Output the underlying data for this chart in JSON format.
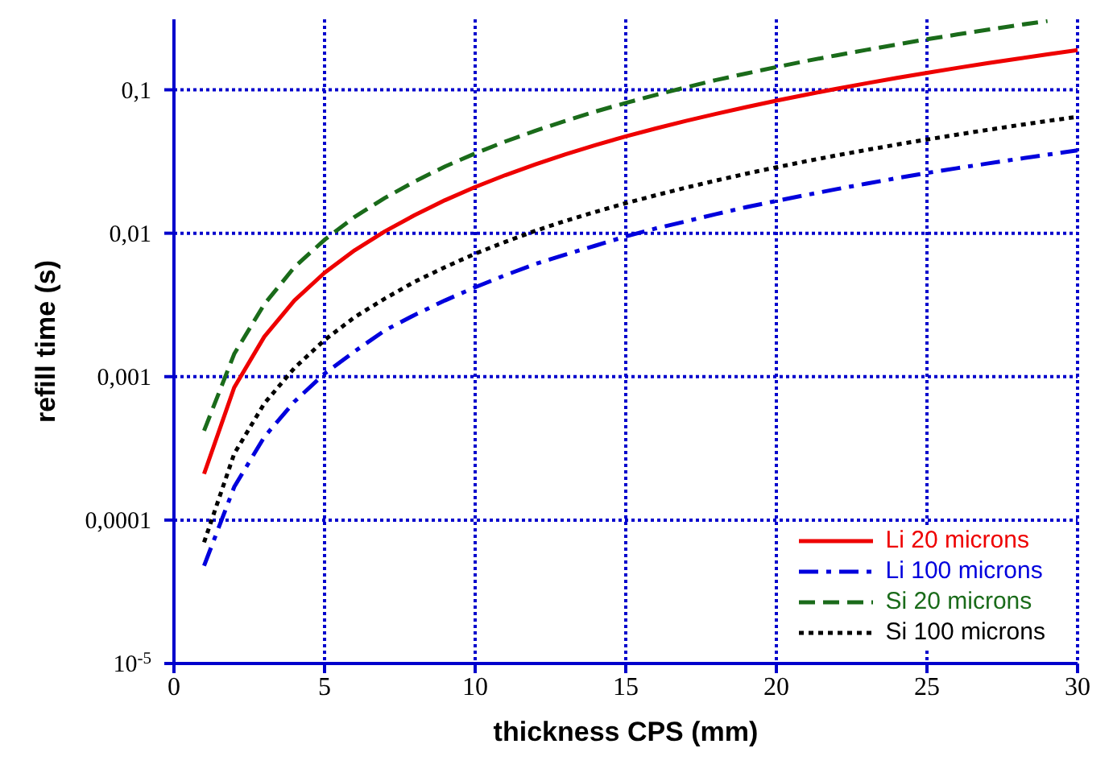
{
  "chart_data": {
    "type": "line",
    "xlabel": "thickness CPS (mm)",
    "ylabel": "refill time (s)",
    "x": [
      1,
      2,
      3,
      4,
      5,
      6,
      7,
      8,
      9,
      10,
      11,
      12,
      13,
      14,
      15,
      16,
      17,
      18,
      19,
      20,
      21,
      22,
      23,
      24,
      25,
      26,
      27,
      28,
      29,
      30
    ],
    "series": [
      {
        "name": "Li 20 microns",
        "color": "#ee0000",
        "line_style": "solid",
        "values": [
          0.00021,
          0.00084,
          0.0019,
          0.0034,
          0.0053,
          0.0076,
          0.0103,
          0.0134,
          0.017,
          0.021,
          0.0254,
          0.0302,
          0.0355,
          0.0412,
          0.0473,
          0.0538,
          0.0607,
          0.068,
          0.0758,
          0.084,
          0.0926,
          0.1016,
          0.1111,
          0.121,
          0.1313,
          0.142,
          0.1531,
          0.1646,
          0.1766,
          0.189
        ]
      },
      {
        "name": "Li 100 microns",
        "color": "#0000dd",
        "line_style": "dashdot",
        "values": [
          4.8e-05,
          0.00017,
          0.00038,
          0.00067,
          0.00105,
          0.0015,
          0.0021,
          0.0027,
          0.0034,
          0.0042,
          0.0051,
          0.0061,
          0.0071,
          0.0082,
          0.0095,
          0.0108,
          0.0121,
          0.0136,
          0.0152,
          0.0168,
          0.0185,
          0.0203,
          0.0222,
          0.0242,
          0.0263,
          0.0284,
          0.0306,
          0.0329,
          0.0353,
          0.0378
        ]
      },
      {
        "name": "Si 20 microns",
        "color": "#1a6b1a",
        "line_style": "dashed",
        "values": [
          0.00042,
          0.00144,
          0.0032,
          0.0058,
          0.009,
          0.013,
          0.0176,
          0.023,
          0.0292,
          0.036,
          0.0436,
          0.0518,
          0.0608,
          0.0706,
          0.081,
          0.0922,
          0.104,
          0.117,
          0.13,
          0.144,
          0.159,
          0.174,
          0.19,
          0.207,
          0.225,
          0.243,
          0.262,
          0.282,
          0.302,
          null
        ]
      },
      {
        "name": "Si 100 microns",
        "color": "#000000",
        "line_style": "dotted",
        "values": [
          7e-05,
          0.00029,
          0.00065,
          0.00115,
          0.0018,
          0.0026,
          0.0035,
          0.0046,
          0.0058,
          0.0072,
          0.0087,
          0.0104,
          0.0122,
          0.0141,
          0.0162,
          0.0184,
          0.0208,
          0.0233,
          0.026,
          0.0288,
          0.0318,
          0.0349,
          0.0381,
          0.0415,
          0.045,
          0.0487,
          0.0525,
          0.0565,
          0.0606,
          0.0648
        ]
      }
    ],
    "xlim": [
      0,
      30
    ],
    "xticks": [
      0,
      5,
      10,
      15,
      20,
      25,
      30
    ],
    "ylim": [
      1e-05,
      0.31
    ],
    "yticks": [
      {
        "value": 0.1,
        "label": "0,1"
      },
      {
        "value": 0.01,
        "label": "0,01"
      },
      {
        "value": 0.001,
        "label": "0,001"
      },
      {
        "value": 0.0001,
        "label": "0,0001"
      },
      {
        "value": 1e-05,
        "label": "10$^{-5}$"
      }
    ],
    "log": "y",
    "grid": true,
    "legend": "bottom right",
    "marker": "none"
  }
}
